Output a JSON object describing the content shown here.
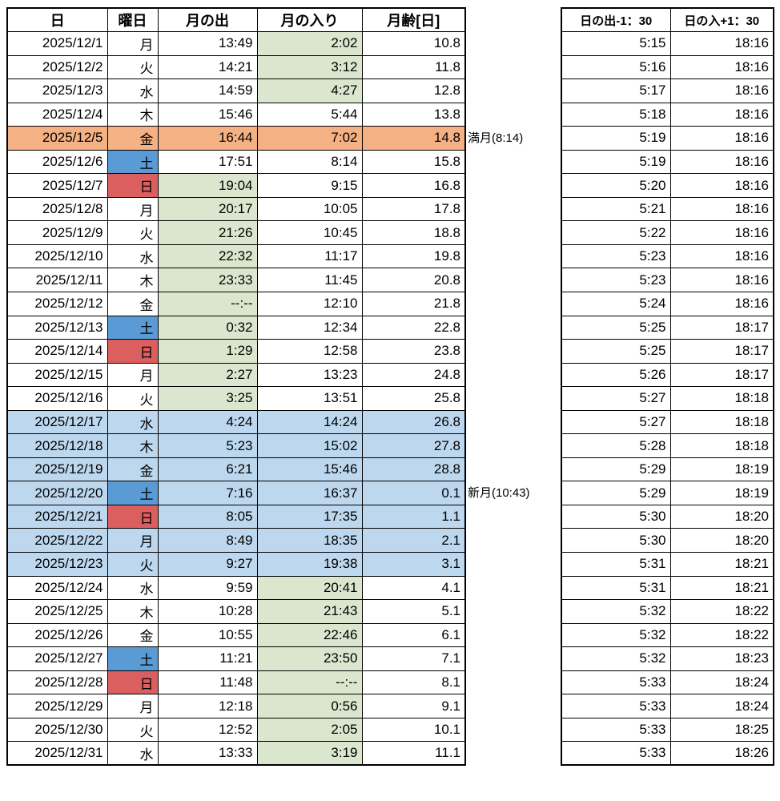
{
  "colors": {
    "full_moon_row": "#F4B183",
    "saturday_cell": "#5B9BD5",
    "sunday_cell": "#DC5F5F",
    "night_time_cell": "#DAE7CE",
    "daytime_moon_row": "#BDD7EE",
    "grid_border": "#000000"
  },
  "left_table": {
    "headers": [
      "日",
      "曜日",
      "月の出",
      "月の入り",
      "月齢[日]"
    ],
    "rows": [
      {
        "date": "2025/12/1",
        "dow": "月",
        "rise": "13:49",
        "set": "2:02",
        "age": "10.8",
        "bg": "",
        "dow_bg": "",
        "rise_bg": "",
        "set_bg": "green"
      },
      {
        "date": "2025/12/2",
        "dow": "火",
        "rise": "14:21",
        "set": "3:12",
        "age": "11.8",
        "bg": "",
        "dow_bg": "",
        "rise_bg": "",
        "set_bg": "green"
      },
      {
        "date": "2025/12/3",
        "dow": "水",
        "rise": "14:59",
        "set": "4:27",
        "age": "12.8",
        "bg": "",
        "dow_bg": "",
        "rise_bg": "",
        "set_bg": "green"
      },
      {
        "date": "2025/12/4",
        "dow": "木",
        "rise": "15:46",
        "set": "5:44",
        "age": "13.8",
        "bg": "",
        "dow_bg": "",
        "rise_bg": "",
        "set_bg": ""
      },
      {
        "date": "2025/12/5",
        "dow": "金",
        "rise": "16:44",
        "set": "7:02",
        "age": "14.8",
        "bg": "orange",
        "dow_bg": "",
        "rise_bg": "",
        "set_bg": ""
      },
      {
        "date": "2025/12/6",
        "dow": "土",
        "rise": "17:51",
        "set": "8:14",
        "age": "15.8",
        "bg": "",
        "dow_bg": "blue",
        "rise_bg": "",
        "set_bg": ""
      },
      {
        "date": "2025/12/7",
        "dow": "日",
        "rise": "19:04",
        "set": "9:15",
        "age": "16.8",
        "bg": "",
        "dow_bg": "red",
        "rise_bg": "green",
        "set_bg": ""
      },
      {
        "date": "2025/12/8",
        "dow": "月",
        "rise": "20:17",
        "set": "10:05",
        "age": "17.8",
        "bg": "",
        "dow_bg": "",
        "rise_bg": "green",
        "set_bg": ""
      },
      {
        "date": "2025/12/9",
        "dow": "火",
        "rise": "21:26",
        "set": "10:45",
        "age": "18.8",
        "bg": "",
        "dow_bg": "",
        "rise_bg": "green",
        "set_bg": ""
      },
      {
        "date": "2025/12/10",
        "dow": "水",
        "rise": "22:32",
        "set": "11:17",
        "age": "19.8",
        "bg": "",
        "dow_bg": "",
        "rise_bg": "green",
        "set_bg": ""
      },
      {
        "date": "2025/12/11",
        "dow": "木",
        "rise": "23:33",
        "set": "11:45",
        "age": "20.8",
        "bg": "",
        "dow_bg": "",
        "rise_bg": "green",
        "set_bg": ""
      },
      {
        "date": "2025/12/12",
        "dow": "金",
        "rise": "--:--",
        "set": "12:10",
        "age": "21.8",
        "bg": "",
        "dow_bg": "",
        "rise_bg": "green",
        "set_bg": ""
      },
      {
        "date": "2025/12/13",
        "dow": "土",
        "rise": "0:32",
        "set": "12:34",
        "age": "22.8",
        "bg": "",
        "dow_bg": "blue",
        "rise_bg": "green",
        "set_bg": ""
      },
      {
        "date": "2025/12/14",
        "dow": "日",
        "rise": "1:29",
        "set": "12:58",
        "age": "23.8",
        "bg": "",
        "dow_bg": "red",
        "rise_bg": "green",
        "set_bg": ""
      },
      {
        "date": "2025/12/15",
        "dow": "月",
        "rise": "2:27",
        "set": "13:23",
        "age": "24.8",
        "bg": "",
        "dow_bg": "",
        "rise_bg": "green",
        "set_bg": ""
      },
      {
        "date": "2025/12/16",
        "dow": "火",
        "rise": "3:25",
        "set": "13:51",
        "age": "25.8",
        "bg": "",
        "dow_bg": "",
        "rise_bg": "green",
        "set_bg": ""
      },
      {
        "date": "2025/12/17",
        "dow": "水",
        "rise": "4:24",
        "set": "14:24",
        "age": "26.8",
        "bg": "lightblue",
        "dow_bg": "",
        "rise_bg": "",
        "set_bg": ""
      },
      {
        "date": "2025/12/18",
        "dow": "木",
        "rise": "5:23",
        "set": "15:02",
        "age": "27.8",
        "bg": "lightblue",
        "dow_bg": "",
        "rise_bg": "",
        "set_bg": ""
      },
      {
        "date": "2025/12/19",
        "dow": "金",
        "rise": "6:21",
        "set": "15:46",
        "age": "28.8",
        "bg": "lightblue",
        "dow_bg": "",
        "rise_bg": "",
        "set_bg": ""
      },
      {
        "date": "2025/12/20",
        "dow": "土",
        "rise": "7:16",
        "set": "16:37",
        "age": "0.1",
        "bg": "lightblue",
        "dow_bg": "blue",
        "rise_bg": "",
        "set_bg": ""
      },
      {
        "date": "2025/12/21",
        "dow": "日",
        "rise": "8:05",
        "set": "17:35",
        "age": "1.1",
        "bg": "lightblue",
        "dow_bg": "red",
        "rise_bg": "",
        "set_bg": ""
      },
      {
        "date": "2025/12/22",
        "dow": "月",
        "rise": "8:49",
        "set": "18:35",
        "age": "2.1",
        "bg": "lightblue",
        "dow_bg": "",
        "rise_bg": "",
        "set_bg": ""
      },
      {
        "date": "2025/12/23",
        "dow": "火",
        "rise": "9:27",
        "set": "19:38",
        "age": "3.1",
        "bg": "lightblue",
        "dow_bg": "",
        "rise_bg": "",
        "set_bg": ""
      },
      {
        "date": "2025/12/24",
        "dow": "水",
        "rise": "9:59",
        "set": "20:41",
        "age": "4.1",
        "bg": "",
        "dow_bg": "",
        "rise_bg": "",
        "set_bg": "green"
      },
      {
        "date": "2025/12/25",
        "dow": "木",
        "rise": "10:28",
        "set": "21:43",
        "age": "5.1",
        "bg": "",
        "dow_bg": "",
        "rise_bg": "",
        "set_bg": "green"
      },
      {
        "date": "2025/12/26",
        "dow": "金",
        "rise": "10:55",
        "set": "22:46",
        "age": "6.1",
        "bg": "",
        "dow_bg": "",
        "rise_bg": "",
        "set_bg": "green"
      },
      {
        "date": "2025/12/27",
        "dow": "土",
        "rise": "11:21",
        "set": "23:50",
        "age": "7.1",
        "bg": "",
        "dow_bg": "blue",
        "rise_bg": "",
        "set_bg": "green"
      },
      {
        "date": "2025/12/28",
        "dow": "日",
        "rise": "11:48",
        "set": "--:--",
        "age": "8.1",
        "bg": "",
        "dow_bg": "red",
        "rise_bg": "",
        "set_bg": "green"
      },
      {
        "date": "2025/12/29",
        "dow": "月",
        "rise": "12:18",
        "set": "0:56",
        "age": "9.1",
        "bg": "",
        "dow_bg": "",
        "rise_bg": "",
        "set_bg": "green"
      },
      {
        "date": "2025/12/30",
        "dow": "火",
        "rise": "12:52",
        "set": "2:05",
        "age": "10.1",
        "bg": "",
        "dow_bg": "",
        "rise_bg": "",
        "set_bg": "green"
      },
      {
        "date": "2025/12/31",
        "dow": "水",
        "rise": "13:33",
        "set": "3:19",
        "age": "11.1",
        "bg": "",
        "dow_bg": "",
        "rise_bg": "",
        "set_bg": "green"
      }
    ]
  },
  "annotations": [
    {
      "row_index": 4,
      "text": "満月(8:14)"
    },
    {
      "row_index": 19,
      "text": "新月(10:43)"
    }
  ],
  "right_table": {
    "headers": [
      "日の出-1：30",
      "日の入+1：30"
    ],
    "rows": [
      {
        "sunrise": "5:15",
        "sunset": "18:16"
      },
      {
        "sunrise": "5:16",
        "sunset": "18:16"
      },
      {
        "sunrise": "5:17",
        "sunset": "18:16"
      },
      {
        "sunrise": "5:18",
        "sunset": "18:16"
      },
      {
        "sunrise": "5:19",
        "sunset": "18:16"
      },
      {
        "sunrise": "5:19",
        "sunset": "18:16"
      },
      {
        "sunrise": "5:20",
        "sunset": "18:16"
      },
      {
        "sunrise": "5:21",
        "sunset": "18:16"
      },
      {
        "sunrise": "5:22",
        "sunset": "18:16"
      },
      {
        "sunrise": "5:23",
        "sunset": "18:16"
      },
      {
        "sunrise": "5:23",
        "sunset": "18:16"
      },
      {
        "sunrise": "5:24",
        "sunset": "18:16"
      },
      {
        "sunrise": "5:25",
        "sunset": "18:17"
      },
      {
        "sunrise": "5:25",
        "sunset": "18:17"
      },
      {
        "sunrise": "5:26",
        "sunset": "18:17"
      },
      {
        "sunrise": "5:27",
        "sunset": "18:18"
      },
      {
        "sunrise": "5:27",
        "sunset": "18:18"
      },
      {
        "sunrise": "5:28",
        "sunset": "18:18"
      },
      {
        "sunrise": "5:29",
        "sunset": "18:19"
      },
      {
        "sunrise": "5:29",
        "sunset": "18:19"
      },
      {
        "sunrise": "5:30",
        "sunset": "18:20"
      },
      {
        "sunrise": "5:30",
        "sunset": "18:20"
      },
      {
        "sunrise": "5:31",
        "sunset": "18:21"
      },
      {
        "sunrise": "5:31",
        "sunset": "18:21"
      },
      {
        "sunrise": "5:32",
        "sunset": "18:22"
      },
      {
        "sunrise": "5:32",
        "sunset": "18:22"
      },
      {
        "sunrise": "5:32",
        "sunset": "18:23"
      },
      {
        "sunrise": "5:33",
        "sunset": "18:24"
      },
      {
        "sunrise": "5:33",
        "sunset": "18:24"
      },
      {
        "sunrise": "5:33",
        "sunset": "18:25"
      },
      {
        "sunrise": "5:33",
        "sunset": "18:26"
      }
    ]
  }
}
